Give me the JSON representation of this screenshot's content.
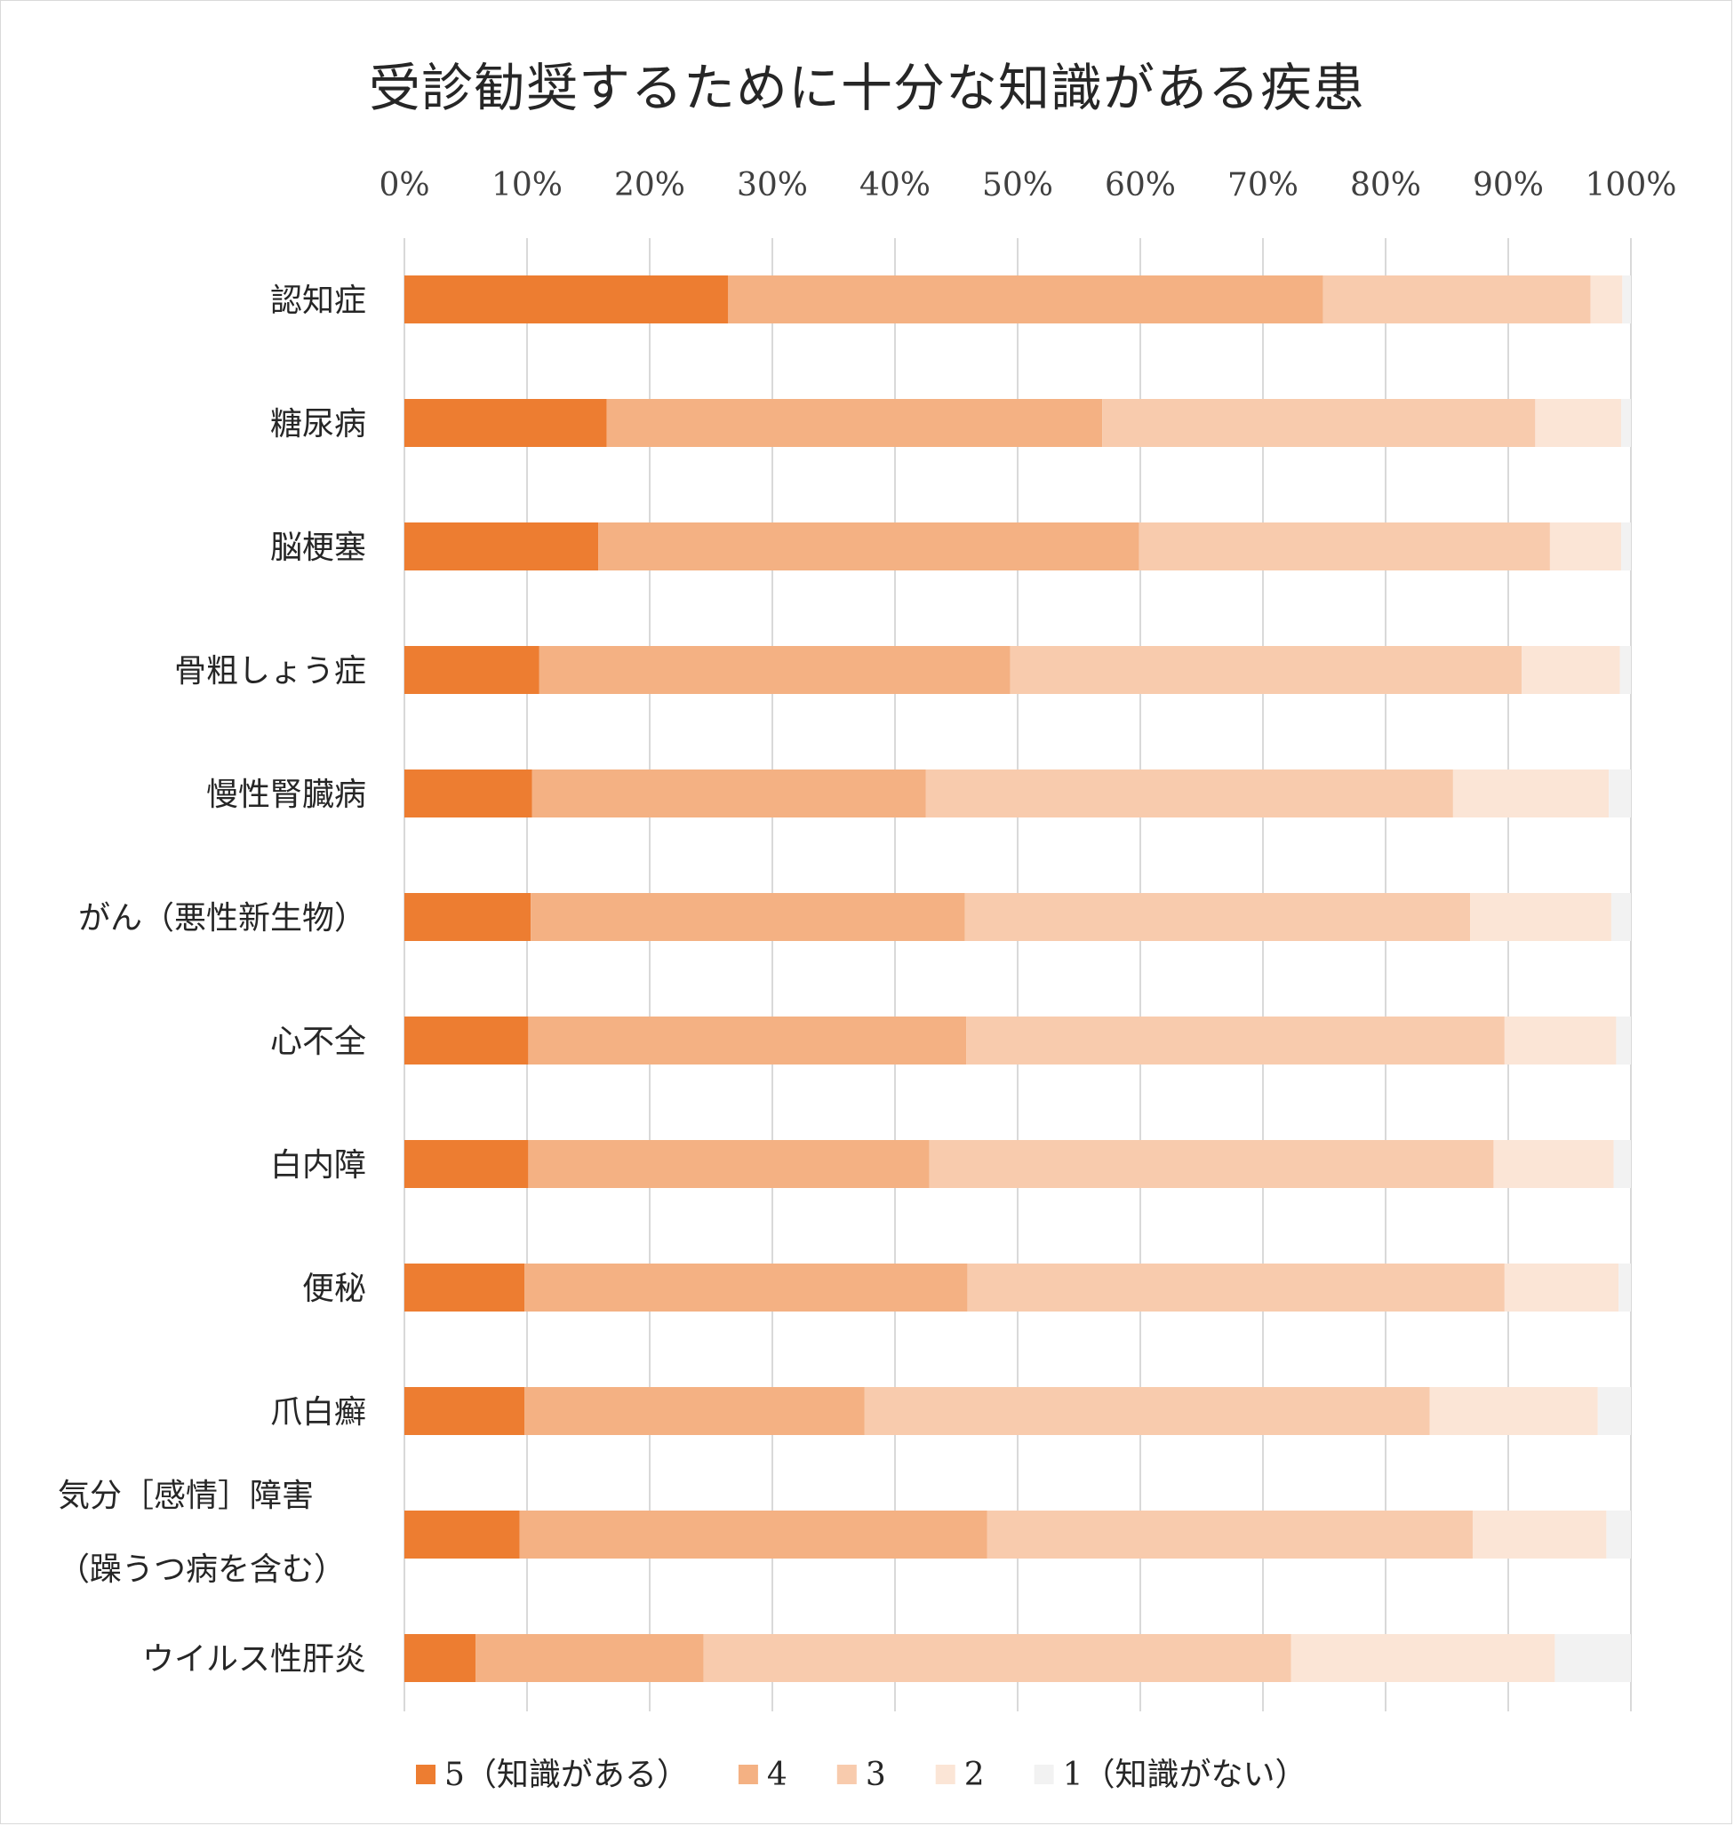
{
  "chart_data": {
    "type": "bar",
    "orientation": "horizontal",
    "stacked": "percent",
    "title": "受診勧奨するために十分な知識がある疾患",
    "xlim": [
      0,
      100
    ],
    "x_ticks": [
      "0%",
      "10%",
      "20%",
      "30%",
      "40%",
      "50%",
      "60%",
      "70%",
      "80%",
      "90%",
      "100%"
    ],
    "categories": [
      [
        "認知症"
      ],
      [
        "糖尿病"
      ],
      [
        "脳梗塞"
      ],
      [
        "骨粗しょう症"
      ],
      [
        "慢性腎臓病"
      ],
      [
        "がん（悪性新生物）"
      ],
      [
        "心不全"
      ],
      [
        "白内障"
      ],
      [
        "便秘"
      ],
      [
        "爪白癬"
      ],
      [
        "気分［感情］障害",
        "（躁うつ病を含む）"
      ],
      [
        "ウイルス性肝炎"
      ]
    ],
    "series": [
      {
        "name": "5（知識がある）",
        "color": "#ed7d31",
        "values": [
          26.4,
          16.5,
          15.8,
          11.0,
          10.4,
          10.3,
          10.1,
          10.1,
          9.8,
          9.8,
          9.4,
          5.8
        ]
      },
      {
        "name": "4",
        "color": "#f4b183",
        "values": [
          48.5,
          40.4,
          44.1,
          38.4,
          32.1,
          35.4,
          35.7,
          32.7,
          36.1,
          27.7,
          38.1,
          18.6
        ]
      },
      {
        "name": "3",
        "color": "#f8cbad",
        "values": [
          21.8,
          35.3,
          33.5,
          41.7,
          43.0,
          41.2,
          43.9,
          46.0,
          43.8,
          46.1,
          39.6,
          47.9
        ]
      },
      {
        "name": "2",
        "color": "#fbe5d6",
        "values": [
          2.6,
          7.0,
          5.8,
          8.0,
          12.7,
          11.5,
          9.1,
          9.8,
          9.3,
          13.7,
          10.9,
          21.5
        ]
      },
      {
        "name": "1（知識がない）",
        "color": "#f2f2f2",
        "values": [
          0.7,
          0.8,
          0.8,
          0.9,
          1.8,
          1.6,
          1.2,
          1.4,
          1.0,
          2.7,
          2.0,
          6.2
        ]
      }
    ],
    "legend_position": "bottom",
    "grid": true
  }
}
